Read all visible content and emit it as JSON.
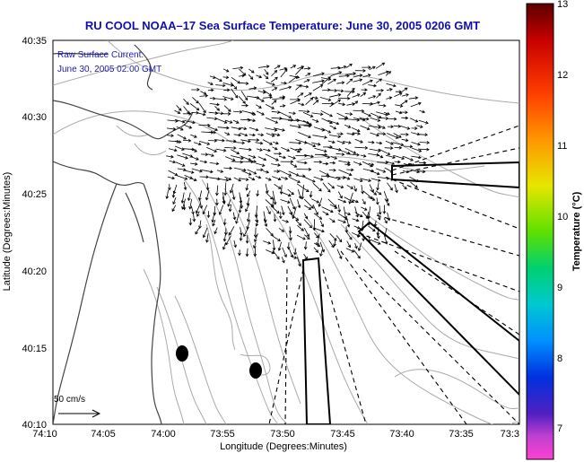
{
  "title": "RU COOL  NOAA–17  Sea Surface Temperature:  June 30, 2005 0206 GMT",
  "current_label": {
    "line1": "Raw Surface Current:",
    "line2": "June 30, 2005 02:00 GMT"
  },
  "axes": {
    "xlabel": "Longitude (Degrees:Minutes)",
    "ylabel": "Latitude (Degrees:Minutes)",
    "x_ticks": [
      "74:10",
      "74:05",
      "74:00",
      "73:55",
      "73:50",
      "73:45",
      "73:40",
      "73:35",
      "73:3"
    ],
    "y_ticks": [
      "40:35",
      "40:30",
      "40:25",
      "40:20",
      "40:15",
      "40:10"
    ]
  },
  "colorbar": {
    "label": "Temperature (°C)",
    "ticks": [
      "13",
      "12",
      "11",
      "10",
      "9",
      "8",
      "7"
    ]
  },
  "scale_label": "50 cm/s",
  "colors": {
    "title": "#1010b0",
    "annotation": "#1a1ab4",
    "coast": "#444444",
    "contour": "#aaaaaa"
  }
}
